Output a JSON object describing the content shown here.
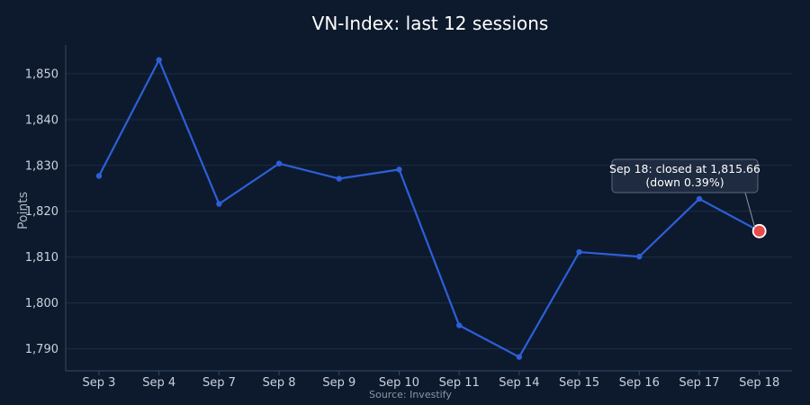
{
  "chart_data": {
    "type": "line",
    "title": "VN-Index: last 12 sessions",
    "xlabel": "",
    "ylabel": "Points",
    "source": "Source: Investify",
    "categories": [
      "Sep 3",
      "Sep 4",
      "Sep 7",
      "Sep 8",
      "Sep 9",
      "Sep 10",
      "Sep 11",
      "Sep 14",
      "Sep 15",
      "Sep 16",
      "Sep 17",
      "Sep 18"
    ],
    "series": [
      {
        "values": [
          1827.7,
          1853.0,
          1821.6,
          1830.4,
          1827.1,
          1829.1,
          1795.1,
          1788.2,
          1811.1,
          1810.1,
          1822.7,
          1815.66
        ]
      }
    ],
    "ylim": [
      1786,
      1857
    ],
    "yticks": [
      1790,
      1800,
      1810,
      1820,
      1830,
      1840,
      1850
    ],
    "ytick_labels": [
      "1,790",
      "1,800",
      "1,810",
      "1,820",
      "1,830",
      "1,840",
      "1,850"
    ],
    "grid": true,
    "line_color": "#2d5fd8",
    "highlight_color": "#e84a4a",
    "annotation": {
      "index": 11,
      "line1": "Sep 18: closed at 1,815.66",
      "line2": "(down 0.39%)"
    }
  }
}
